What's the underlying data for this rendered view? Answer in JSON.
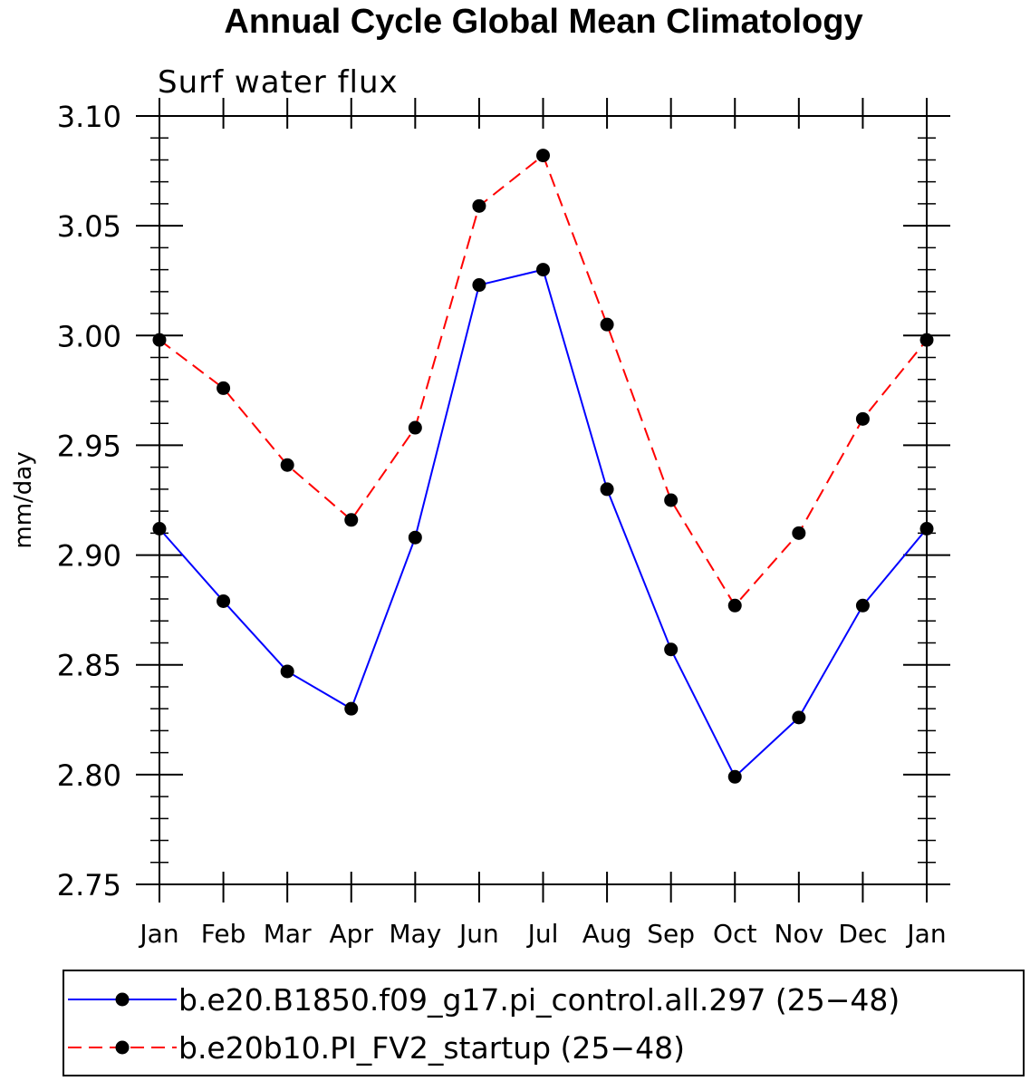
{
  "chart_data": {
    "type": "line",
    "title": "Annual Cycle Global Mean Climatology",
    "subtitle": "Surf water flux",
    "xlabel": "",
    "ylabel": "mm/day",
    "categories": [
      "Jan",
      "Feb",
      "Mar",
      "Apr",
      "May",
      "Jun",
      "Jul",
      "Aug",
      "Sep",
      "Oct",
      "Nov",
      "Dec",
      "Jan"
    ],
    "ylim": [
      2.75,
      3.1
    ],
    "yticks": [
      "2.75",
      "2.80",
      "2.85",
      "2.90",
      "2.95",
      "3.00",
      "3.05",
      "3.10"
    ],
    "series": [
      {
        "name": "b.e20.B1850.f09_g17.pi_control.all.297 (25−48)",
        "color": "#0000ff",
        "dash": "solid",
        "values": [
          2.912,
          2.879,
          2.847,
          2.83,
          2.908,
          3.023,
          3.03,
          2.93,
          2.857,
          2.799,
          2.826,
          2.877,
          2.912
        ]
      },
      {
        "name": "b.e20b10.PI_FV2_startup (25−48)",
        "color": "#ff0000",
        "dash": "dashed",
        "values": [
          2.998,
          2.976,
          2.941,
          2.916,
          2.958,
          3.059,
          3.082,
          3.005,
          2.925,
          2.877,
          2.91,
          2.962,
          2.998
        ]
      }
    ],
    "legend_position": "bottom"
  }
}
